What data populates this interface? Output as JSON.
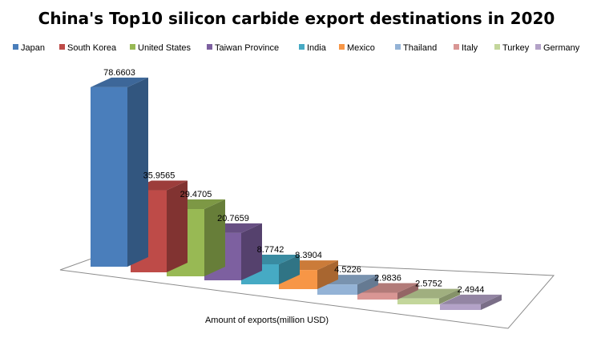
{
  "chart_data": {
    "type": "bar",
    "title": "China's Top10 silicon carbide export destinations in 2020",
    "xlabel": "Amount of exports(million USD)",
    "ylabel": "",
    "grid": false,
    "legend_position": "top",
    "ylim": [
      0,
      80
    ],
    "categories": [
      "Japan",
      "South Korea",
      "United States",
      "Taiwan Province",
      "India",
      "Mexico",
      "Thailand",
      "Italy",
      "Turkey",
      "Germany"
    ],
    "series": [
      {
        "values": [
          78.6603,
          35.9565,
          29.4705,
          20.7659,
          8.7742,
          8.3904,
          4.5226,
          2.9836,
          2.5752,
          2.4944
        ],
        "labels": [
          "78.6603",
          "35.9565",
          "29.4705",
          "20.7659",
          "8.7742",
          "8.3904",
          "4.5226",
          "2.9836",
          "2.5752",
          "2.4944"
        ]
      }
    ],
    "colors": [
      "#4a7ebb",
      "#be4b48",
      "#98b954",
      "#7d60a0",
      "#46aac4",
      "#f79646",
      "#94b3d6",
      "#d99694",
      "#c3d69b",
      "#b3a2c7"
    ]
  }
}
